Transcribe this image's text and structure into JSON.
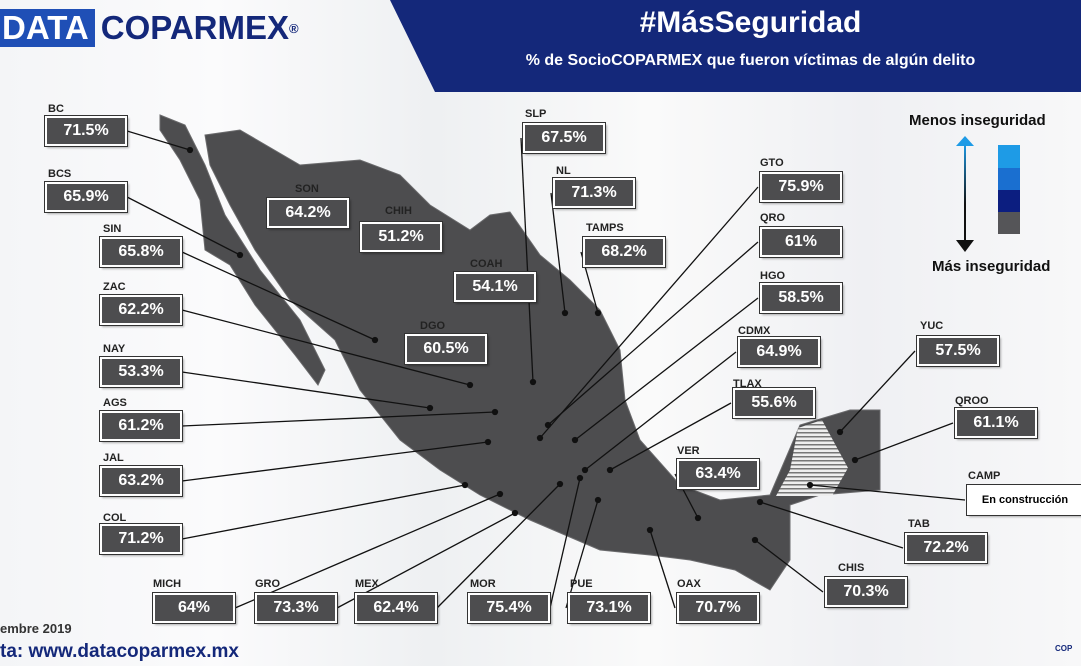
{
  "header": {
    "logo_part1": "DATA",
    "logo_part2": "COPARMEX",
    "logo_mark": "®",
    "title": "#MásSeguridad",
    "subtitle": "% de SocioCOPARMEX que fueron víctimas de algún delito"
  },
  "legend": {
    "top_label": "Menos inseguridad",
    "bottom_label": "Más inseguridad",
    "colors": [
      "#1e9be6",
      "#1a6fd0",
      "#0c1e80",
      "#555558"
    ]
  },
  "colors": {
    "map_fill": "#4d4d4f",
    "banner": "#14287a",
    "logo_blue": "#1f4fb6"
  },
  "states": [
    {
      "name": "BC",
      "value": "71.5%"
    },
    {
      "name": "BCS",
      "value": "65.9%"
    },
    {
      "name": "SIN",
      "value": "65.8%"
    },
    {
      "name": "ZAC",
      "value": "62.2%"
    },
    {
      "name": "NAY",
      "value": "53.3%"
    },
    {
      "name": "AGS",
      "value": "61.2%"
    },
    {
      "name": "JAL",
      "value": "63.2%"
    },
    {
      "name": "COL",
      "value": "71.2%"
    },
    {
      "name": "MICH",
      "value": "64%"
    },
    {
      "name": "GRO",
      "value": "73.3%"
    },
    {
      "name": "MEX",
      "value": "62.4%"
    },
    {
      "name": "MOR",
      "value": "75.4%"
    },
    {
      "name": "PUE",
      "value": "73.1%"
    },
    {
      "name": "OAX",
      "value": "70.7%"
    },
    {
      "name": "CHIS",
      "value": "70.3%"
    },
    {
      "name": "TAB",
      "value": "72.2%"
    },
    {
      "name": "CAMP",
      "value": "En construcción"
    },
    {
      "name": "QROO",
      "value": "61.1%"
    },
    {
      "name": "YUC",
      "value": "57.5%"
    },
    {
      "name": "VER",
      "value": "63.4%"
    },
    {
      "name": "TLAX",
      "value": "55.6%"
    },
    {
      "name": "CDMX",
      "value": "64.9%"
    },
    {
      "name": "HGO",
      "value": "58.5%"
    },
    {
      "name": "QRO",
      "value": "61%"
    },
    {
      "name": "GTO",
      "value": "75.9%"
    },
    {
      "name": "TAMPS",
      "value": "68.2%"
    },
    {
      "name": "NL",
      "value": "71.3%"
    },
    {
      "name": "SLP",
      "value": "67.5%"
    },
    {
      "name": "COAH",
      "value": "54.1%"
    },
    {
      "name": "DGO",
      "value": "60.5%"
    },
    {
      "name": "CHIH",
      "value": "51.2%"
    },
    {
      "name": "SON",
      "value": "64.2%"
    }
  ],
  "footer": {
    "date": "embre 2019",
    "source": "ta: www.datacoparmex.mx",
    "corner": "COP"
  }
}
